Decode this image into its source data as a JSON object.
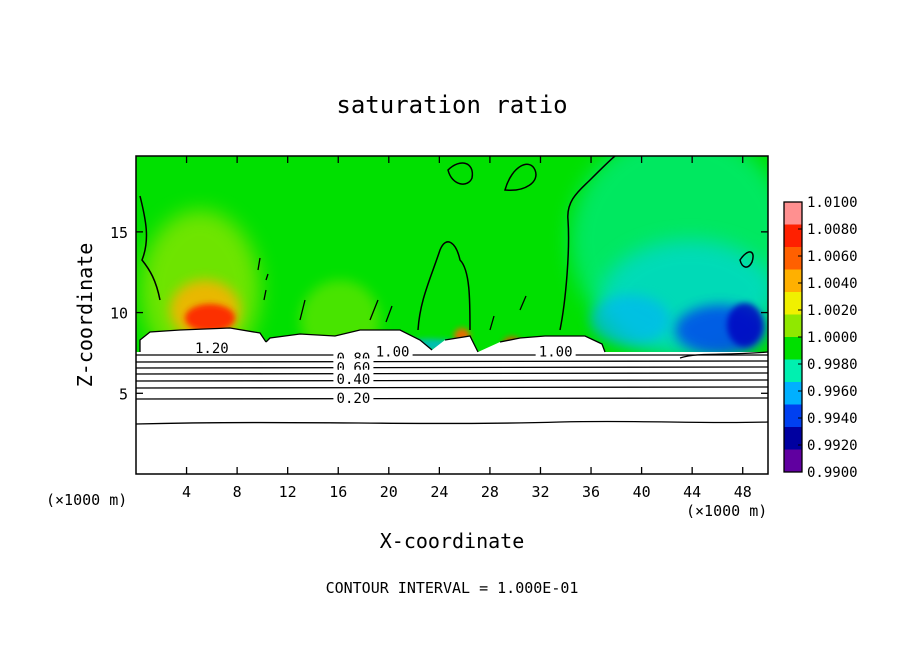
{
  "chart_data": {
    "type": "heatmap",
    "title": "saturation ratio",
    "xlabel": "X-coordinate",
    "ylabel": "Z-coordinate",
    "x_unit_label": "(×1000 m)",
    "z_unit_label": "(×1000 m)",
    "x_ticks": [
      4,
      8,
      12,
      16,
      20,
      24,
      28,
      32,
      36,
      40,
      44,
      48
    ],
    "y_ticks": [
      5,
      10,
      15
    ],
    "xlim": [
      0,
      50
    ],
    "ylim": [
      0,
      19.7
    ],
    "footer": "CONTOUR INTERVAL = 1.000E-01",
    "colorbar": {
      "labels": [
        "1.0100",
        "1.0080",
        "1.0060",
        "1.0040",
        "1.0020",
        "1.0000",
        "0.9980",
        "0.9960",
        "0.9940",
        "0.9920",
        "0.9900"
      ],
      "colors": [
        "#ff9090",
        "#ff2000",
        "#ff6000",
        "#ffb000",
        "#f0f000",
        "#90e800",
        "#00e000",
        "#00f0b0",
        "#00b0ff",
        "#0040f0",
        "#0000a0",
        "#6000a0"
      ],
      "min": 0.99,
      "max": 1.01
    },
    "contour_labels": [
      {
        "text": "1.20",
        "x": 6.0,
        "z": 7.8
      },
      {
        "text": "1.00",
        "x": 20.3,
        "z": 7.6
      },
      {
        "text": "1.00",
        "x": 33.2,
        "z": 7.6
      },
      {
        "text": "0.80",
        "x": 17.2,
        "z": 7.2
      },
      {
        "text": "0.60",
        "x": 17.2,
        "z": 6.6
      },
      {
        "text": "0.40",
        "x": 17.2,
        "z": 5.9
      },
      {
        "text": "0.20",
        "x": 17.2,
        "z": 4.7
      }
    ]
  }
}
